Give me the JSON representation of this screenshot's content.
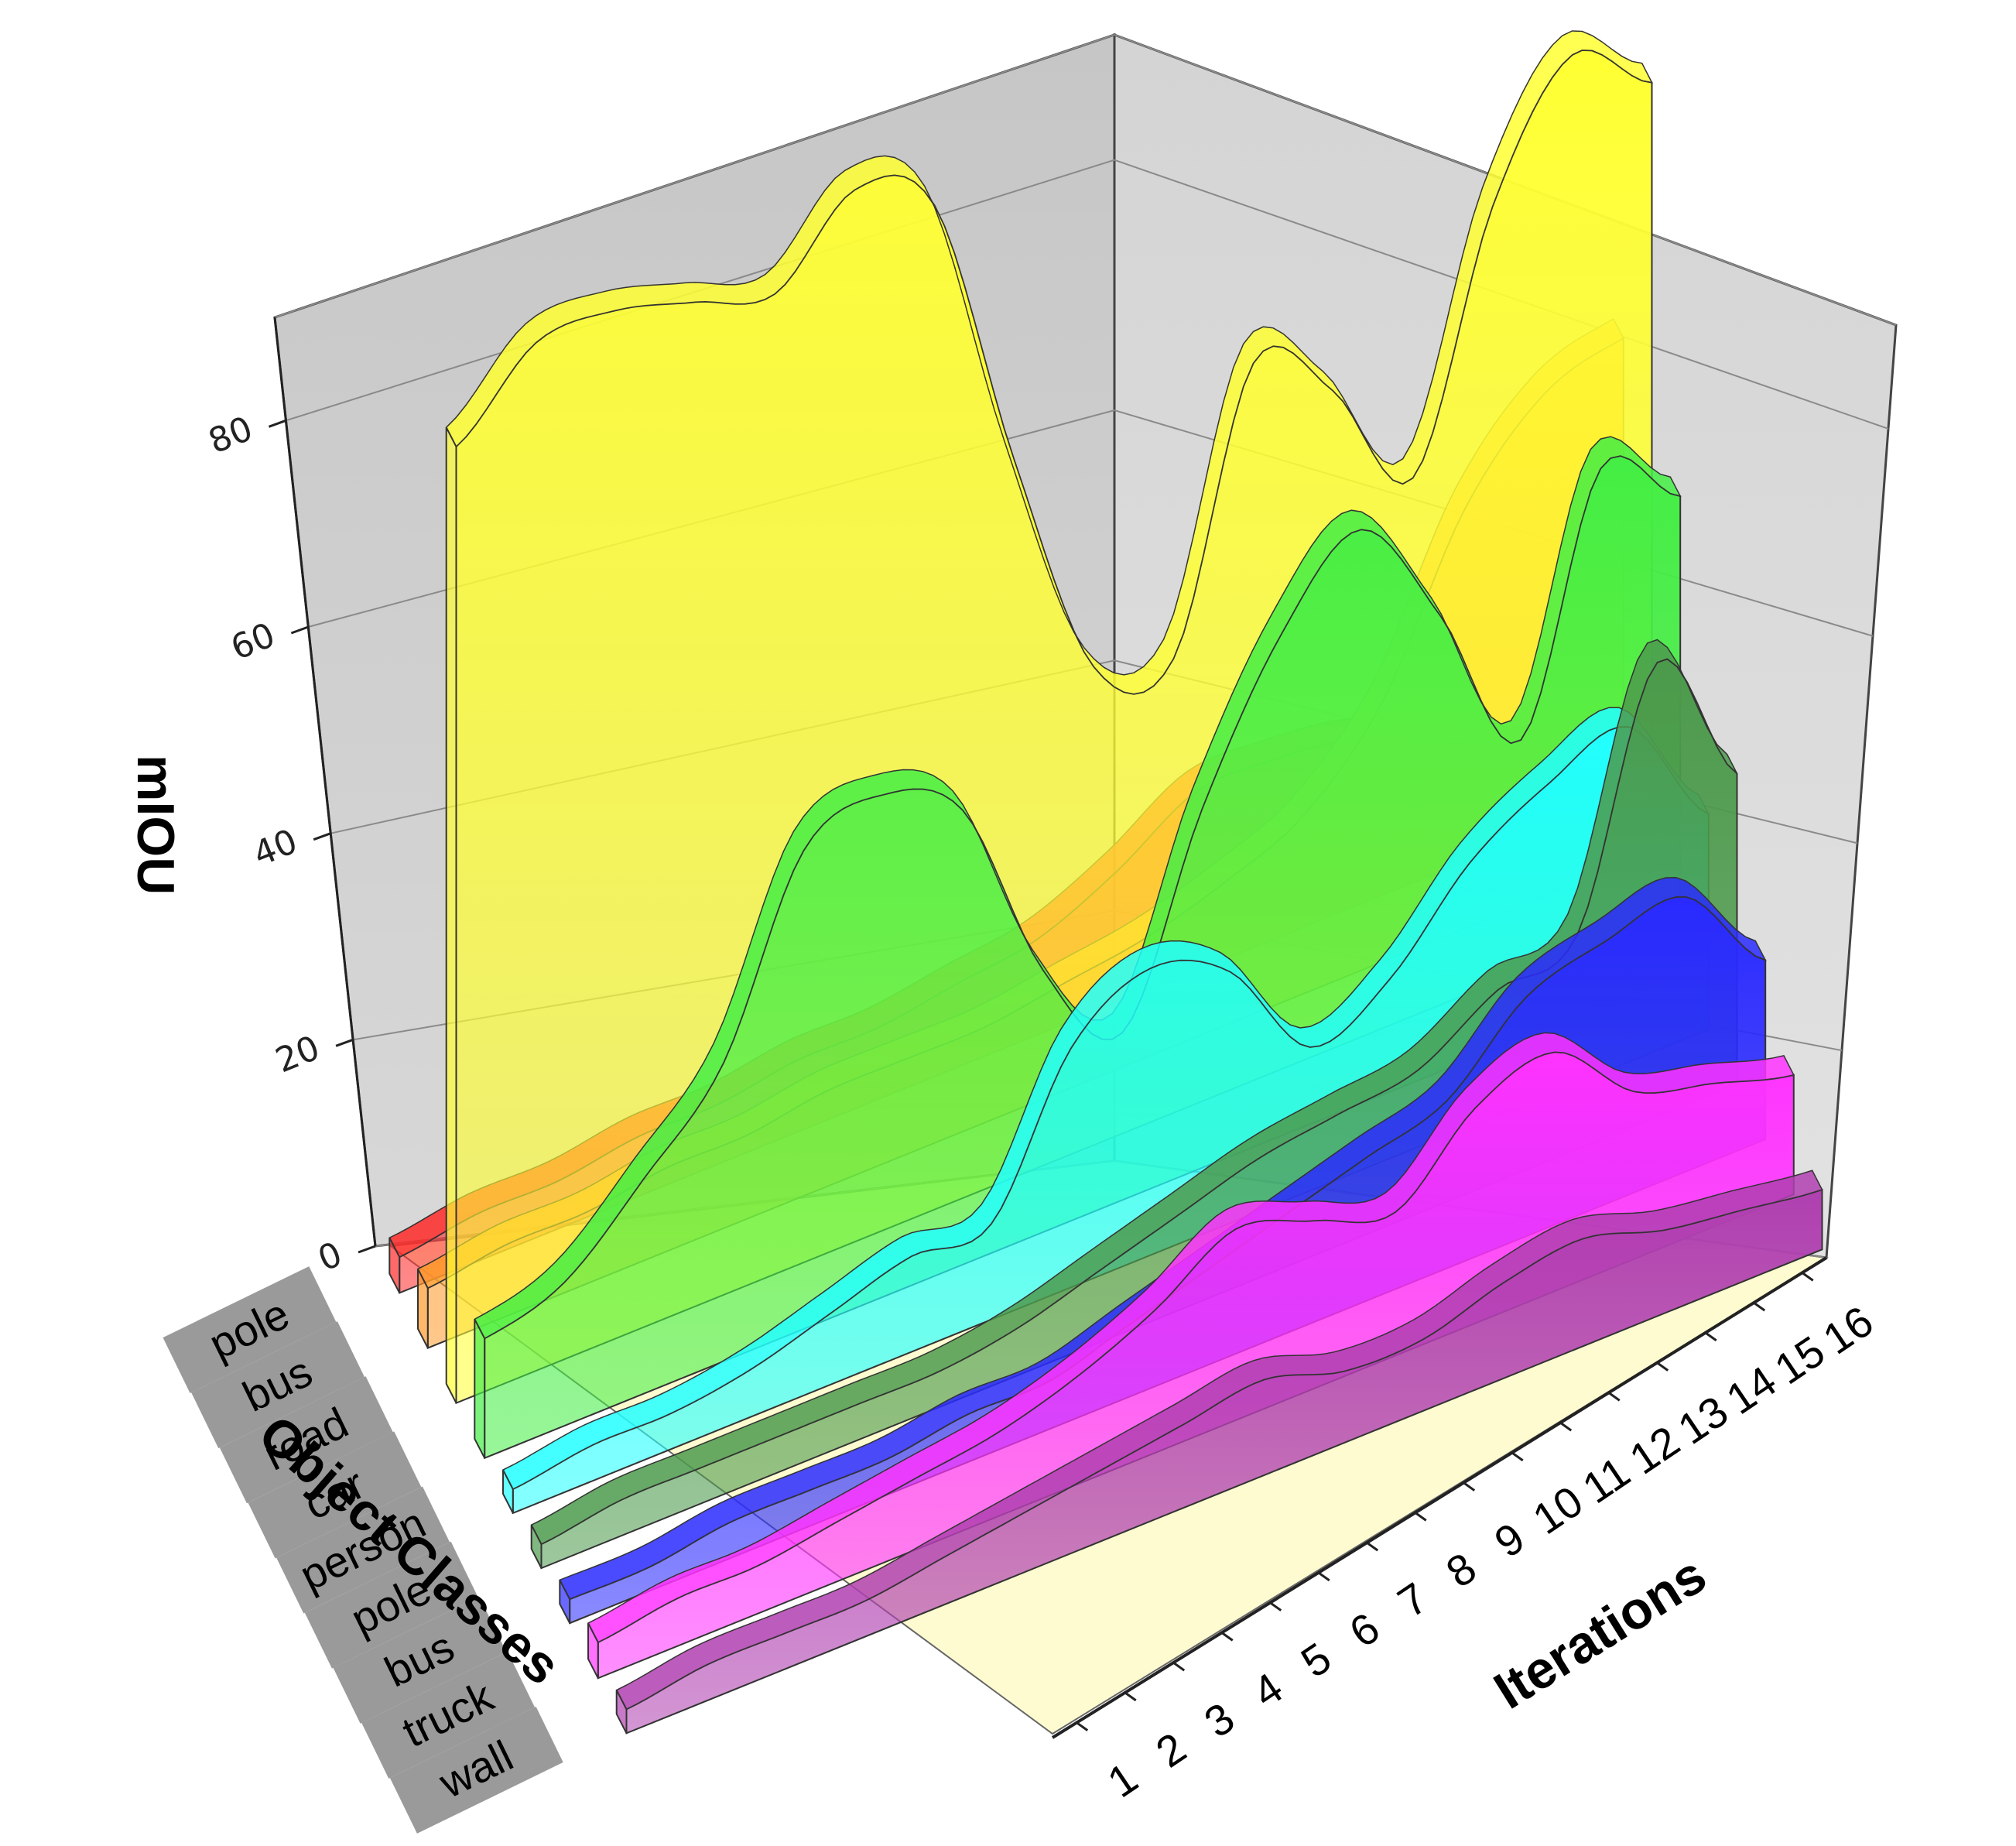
{
  "chart_data": {
    "type": "3d-ribbon",
    "xlabel": "Iterations",
    "ylabel": "Object Classes",
    "zlabel": "mIOU",
    "x_tick_labels": [
      "1",
      "2",
      "3",
      "4",
      "5",
      "6",
      "7",
      "8",
      "9",
      "10",
      "11",
      "12",
      "13",
      "14",
      "15",
      "16"
    ],
    "z_ticks": [
      "0",
      "20",
      "40",
      "60",
      "80"
    ],
    "zlim": [
      0,
      90
    ],
    "grid": true,
    "series": [
      {
        "name": "pole",
        "color": "#ff2a2a",
        "values": [
          3,
          4,
          4,
          5,
          5,
          6,
          6,
          7,
          8,
          11,
          15,
          15,
          14,
          11,
          8,
          6
        ]
      },
      {
        "name": "bus",
        "color": "#ff9a2a",
        "values": [
          5,
          6,
          6,
          7,
          7,
          8,
          8,
          8,
          9,
          10,
          12,
          15,
          22,
          35,
          42,
          44
        ]
      },
      {
        "name": "road",
        "color": "#ffff33",
        "values": [
          80,
          86,
          86,
          84,
          82,
          88,
          84,
          60,
          40,
          38,
          60,
          55,
          45,
          65,
          75,
          70
        ]
      },
      {
        "name": "car",
        "color": "#44ee44",
        "values": [
          10,
          12,
          18,
          25,
          40,
          42,
          38,
          22,
          14,
          30,
          42,
          48,
          38,
          25,
          45,
          40
        ]
      },
      {
        "name": "person",
        "color": "#22ffff",
        "values": [
          2,
          3,
          3,
          4,
          6,
          8,
          8,
          20,
          24,
          21,
          12,
          15,
          22,
          26,
          28,
          18
        ]
      },
      {
        "name": "pole",
        "color": "#4c9a4c",
        "values": [
          2,
          3,
          3,
          3,
          3,
          3,
          4,
          6,
          8,
          10,
          11,
          12,
          16,
          18,
          38,
          26
        ]
      },
      {
        "name": "bus",
        "color": "#2a2aff",
        "values": [
          2,
          2,
          3,
          3,
          3,
          4,
          4,
          6,
          8,
          10,
          12,
          14,
          20,
          22,
          23,
          15
        ]
      },
      {
        "name": "truck",
        "color": "#ff33ff",
        "values": [
          3,
          4,
          4,
          5,
          6,
          7,
          9,
          12,
          16,
          14,
          12,
          18,
          20,
          14,
          12,
          10
        ]
      },
      {
        "name": "wall",
        "color": "#b040b0",
        "values": [
          2,
          3,
          3,
          3,
          4,
          5,
          6,
          7,
          8,
          6,
          6,
          8,
          9,
          7,
          6,
          5
        ]
      }
    ]
  }
}
